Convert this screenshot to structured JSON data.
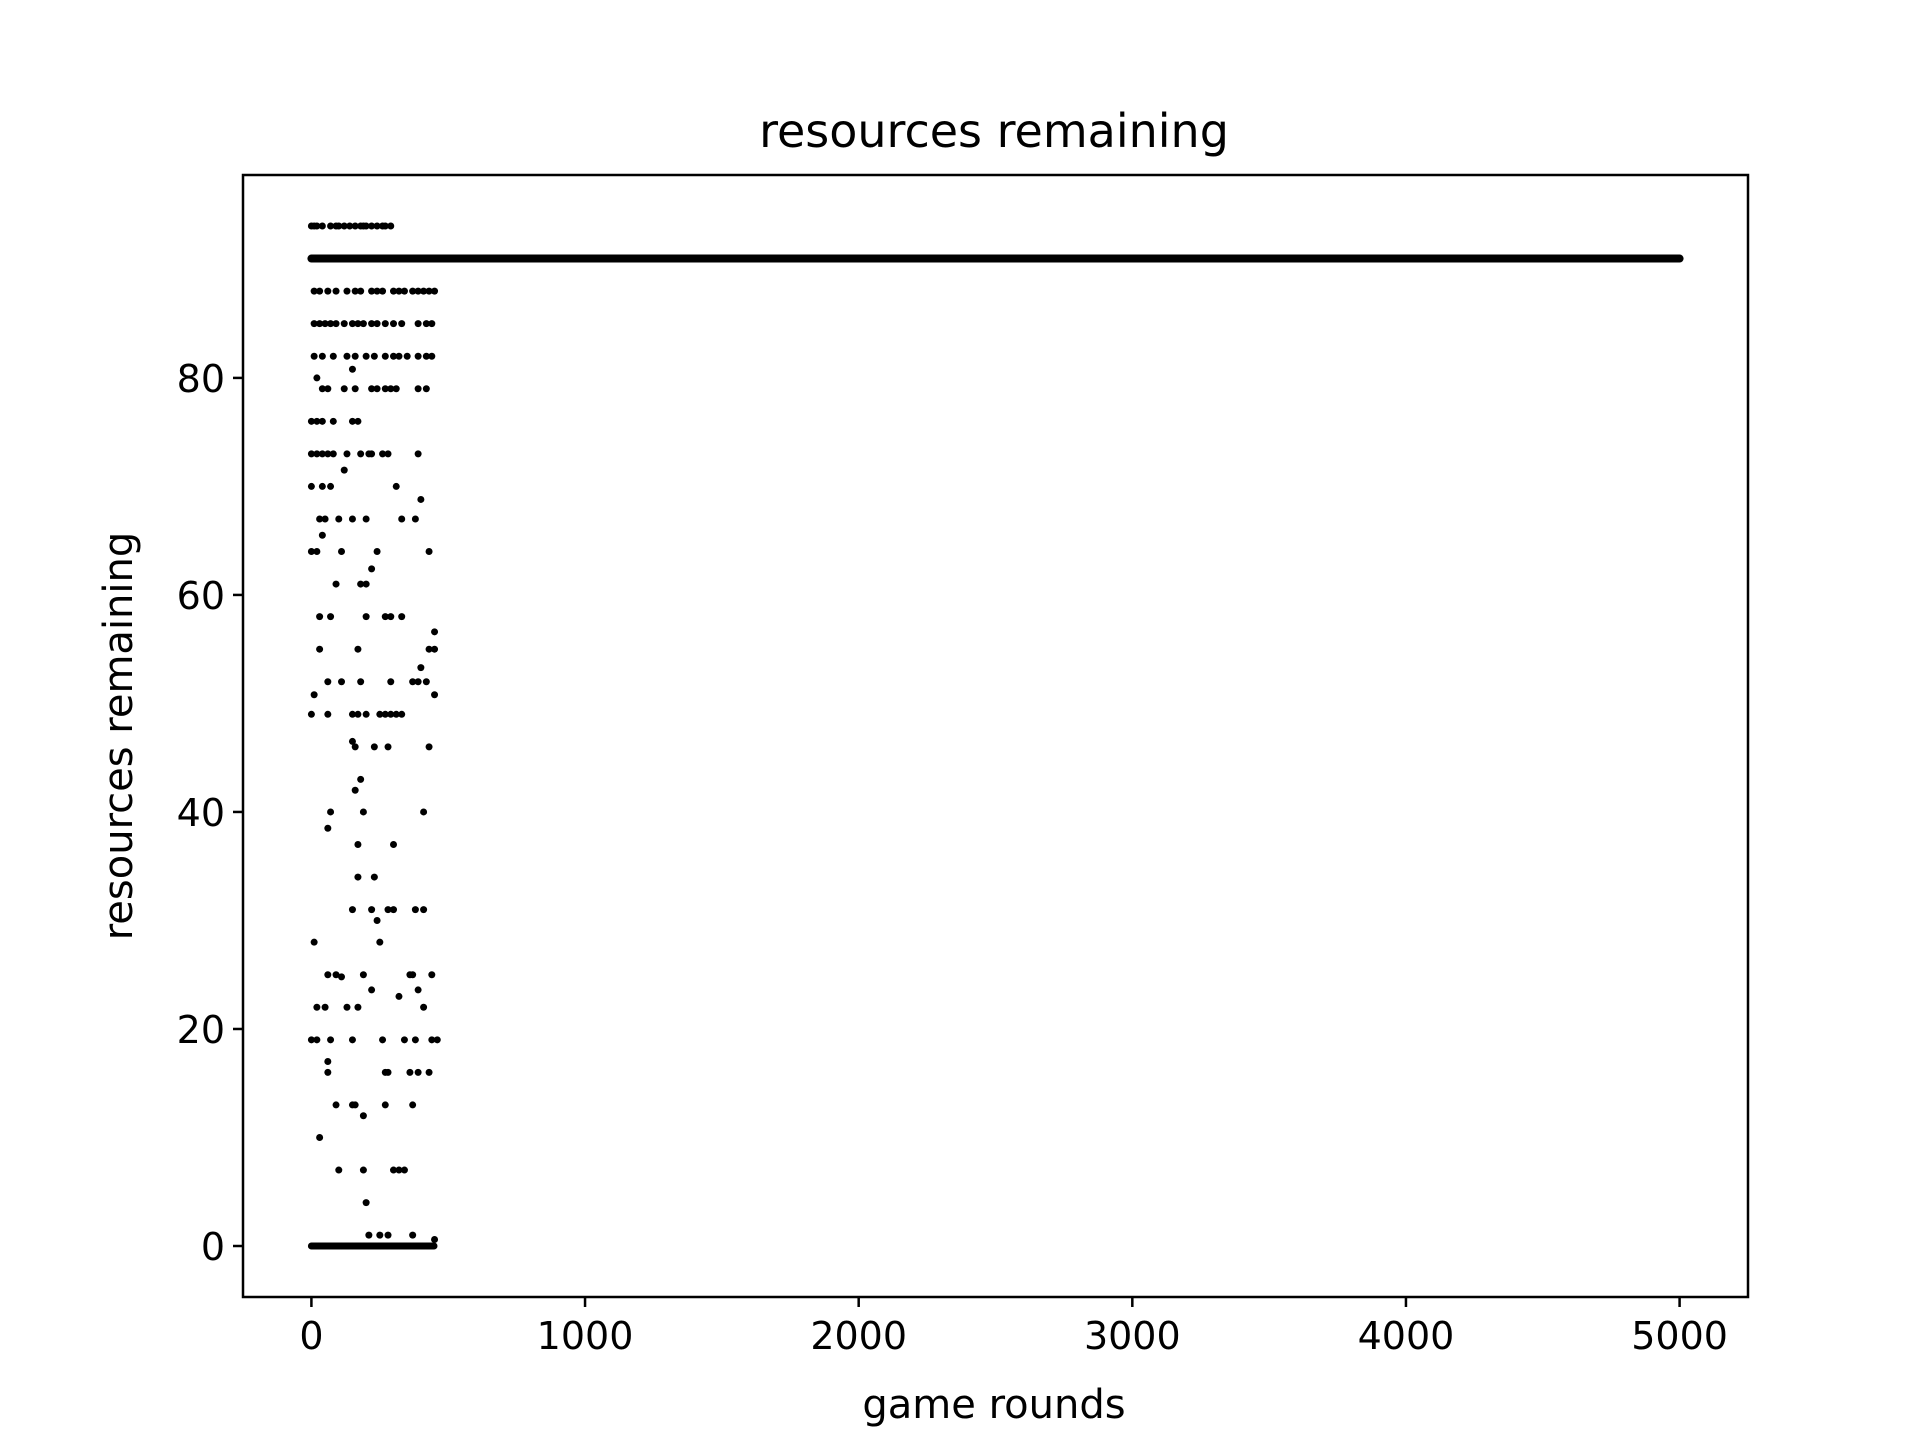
{
  "chart_data": {
    "type": "scatter",
    "title": "resources remaining",
    "xlabel": "game rounds",
    "ylabel": "resources remaining",
    "xlim": [
      -250,
      5250
    ],
    "ylim": [
      -4.7,
      98.7
    ],
    "xticks": [
      0,
      1000,
      2000,
      3000,
      4000,
      5000
    ],
    "yticks": [
      0,
      20,
      40,
      60,
      80
    ],
    "grid": false,
    "marker_color": "#000000",
    "plateau": {
      "y": 91,
      "x_from": 0,
      "x_to": 5000,
      "note": "dense points at every round"
    },
    "points": [
      [
        0,
        94
      ],
      [
        10,
        94
      ],
      [
        20,
        94
      ],
      [
        40,
        94
      ],
      [
        70,
        94
      ],
      [
        90,
        94
      ],
      [
        100,
        94
      ],
      [
        120,
        94
      ],
      [
        140,
        94
      ],
      [
        160,
        94
      ],
      [
        180,
        94
      ],
      [
        190,
        94
      ],
      [
        200,
        94
      ],
      [
        220,
        94
      ],
      [
        240,
        94
      ],
      [
        260,
        94
      ],
      [
        270,
        94
      ],
      [
        290,
        94
      ],
      [
        10,
        91
      ],
      [
        20,
        91
      ],
      [
        70,
        91
      ],
      [
        90,
        91
      ],
      [
        120,
        91
      ],
      [
        150,
        91
      ],
      [
        170,
        91
      ],
      [
        200,
        91
      ],
      [
        220,
        91
      ],
      [
        250,
        91
      ],
      [
        10,
        88
      ],
      [
        30,
        88
      ],
      [
        60,
        88
      ],
      [
        90,
        88
      ],
      [
        130,
        88
      ],
      [
        160,
        88
      ],
      [
        180,
        88
      ],
      [
        220,
        88
      ],
      [
        240,
        88
      ],
      [
        260,
        88
      ],
      [
        300,
        88
      ],
      [
        320,
        88
      ],
      [
        340,
        88
      ],
      [
        370,
        88
      ],
      [
        390,
        88
      ],
      [
        410,
        88
      ],
      [
        430,
        88
      ],
      [
        450,
        88
      ],
      [
        10,
        85
      ],
      [
        30,
        85
      ],
      [
        50,
        85
      ],
      [
        70,
        85
      ],
      [
        90,
        85
      ],
      [
        120,
        85
      ],
      [
        150,
        85
      ],
      [
        170,
        85
      ],
      [
        190,
        85
      ],
      [
        220,
        85
      ],
      [
        240,
        85
      ],
      [
        270,
        85
      ],
      [
        300,
        85
      ],
      [
        330,
        85
      ],
      [
        390,
        85
      ],
      [
        420,
        85
      ],
      [
        440,
        85
      ],
      [
        10,
        82
      ],
      [
        40,
        82
      ],
      [
        80,
        82
      ],
      [
        130,
        82
      ],
      [
        160,
        82
      ],
      [
        200,
        82
      ],
      [
        230,
        82
      ],
      [
        270,
        82
      ],
      [
        300,
        82
      ],
      [
        320,
        82
      ],
      [
        350,
        82
      ],
      [
        390,
        82
      ],
      [
        420,
        82
      ],
      [
        440,
        82
      ],
      [
        20,
        80
      ],
      [
        40,
        79
      ],
      [
        60,
        79
      ],
      [
        120,
        79
      ],
      [
        160,
        79
      ],
      [
        220,
        79
      ],
      [
        240,
        79
      ],
      [
        270,
        79
      ],
      [
        290,
        79
      ],
      [
        310,
        79
      ],
      [
        390,
        79
      ],
      [
        420,
        79
      ],
      [
        150,
        80.8
      ],
      [
        0,
        76
      ],
      [
        20,
        76
      ],
      [
        40,
        76
      ],
      [
        80,
        76
      ],
      [
        150,
        76
      ],
      [
        170,
        76
      ],
      [
        0,
        73
      ],
      [
        20,
        73
      ],
      [
        40,
        73
      ],
      [
        60,
        73
      ],
      [
        80,
        73
      ],
      [
        130,
        73
      ],
      [
        180,
        73
      ],
      [
        210,
        73
      ],
      [
        220,
        73
      ],
      [
        260,
        73
      ],
      [
        280,
        73
      ],
      [
        390,
        73
      ],
      [
        120,
        71.5
      ],
      [
        0,
        70
      ],
      [
        40,
        70
      ],
      [
        70,
        70
      ],
      [
        310,
        70
      ],
      [
        400,
        68.8
      ],
      [
        30,
        67
      ],
      [
        50,
        67
      ],
      [
        100,
        67
      ],
      [
        150,
        67
      ],
      [
        200,
        67
      ],
      [
        330,
        67
      ],
      [
        380,
        67
      ],
      [
        40,
        65.5
      ],
      [
        0,
        64
      ],
      [
        20,
        64
      ],
      [
        110,
        64
      ],
      [
        240,
        64
      ],
      [
        430,
        64
      ],
      [
        220,
        62.4
      ],
      [
        90,
        61
      ],
      [
        180,
        61
      ],
      [
        200,
        61
      ],
      [
        30,
        58
      ],
      [
        70,
        58
      ],
      [
        200,
        58
      ],
      [
        270,
        58
      ],
      [
        290,
        58
      ],
      [
        330,
        58
      ],
      [
        450,
        56.6
      ],
      [
        30,
        55
      ],
      [
        170,
        55
      ],
      [
        430,
        55
      ],
      [
        450,
        55
      ],
      [
        400,
        53.3
      ],
      [
        60,
        52
      ],
      [
        110,
        52
      ],
      [
        180,
        52
      ],
      [
        290,
        52
      ],
      [
        370,
        52
      ],
      [
        390,
        52
      ],
      [
        420,
        52
      ],
      [
        10,
        50.8
      ],
      [
        450,
        50.8
      ],
      [
        0,
        49
      ],
      [
        60,
        49
      ],
      [
        150,
        49
      ],
      [
        170,
        49
      ],
      [
        200,
        49
      ],
      [
        250,
        49
      ],
      [
        270,
        49
      ],
      [
        290,
        49
      ],
      [
        310,
        49
      ],
      [
        330,
        49
      ],
      [
        150,
        46.5
      ],
      [
        160,
        46
      ],
      [
        230,
        46
      ],
      [
        280,
        46
      ],
      [
        430,
        46
      ],
      [
        160,
        42
      ],
      [
        180,
        43
      ],
      [
        70,
        40
      ],
      [
        190,
        40
      ],
      [
        410,
        40
      ],
      [
        60,
        38.5
      ],
      [
        170,
        37
      ],
      [
        300,
        37
      ],
      [
        170,
        34
      ],
      [
        230,
        34
      ],
      [
        150,
        31
      ],
      [
        220,
        31
      ],
      [
        280,
        31
      ],
      [
        300,
        31
      ],
      [
        380,
        31
      ],
      [
        410,
        31
      ],
      [
        240,
        30
      ],
      [
        250,
        28
      ],
      [
        10,
        28
      ],
      [
        60,
        25
      ],
      [
        90,
        25
      ],
      [
        110,
        24.8
      ],
      [
        190,
        25
      ],
      [
        360,
        25
      ],
      [
        370,
        25
      ],
      [
        440,
        25
      ],
      [
        220,
        23.6
      ],
      [
        320,
        23
      ],
      [
        390,
        23.6
      ],
      [
        410,
        22
      ],
      [
        20,
        22
      ],
      [
        50,
        22
      ],
      [
        130,
        22
      ],
      [
        170,
        22
      ],
      [
        0,
        19
      ],
      [
        20,
        19
      ],
      [
        70,
        19
      ],
      [
        150,
        19
      ],
      [
        260,
        19
      ],
      [
        340,
        19
      ],
      [
        380,
        19
      ],
      [
        440,
        19
      ],
      [
        460,
        19
      ],
      [
        60,
        17
      ],
      [
        60,
        16
      ],
      [
        270,
        16
      ],
      [
        280,
        16
      ],
      [
        360,
        16
      ],
      [
        390,
        16
      ],
      [
        430,
        16
      ],
      [
        90,
        13
      ],
      [
        150,
        13
      ],
      [
        160,
        13
      ],
      [
        270,
        13
      ],
      [
        370,
        13
      ],
      [
        190,
        12
      ],
      [
        30,
        10
      ],
      [
        100,
        7
      ],
      [
        190,
        7
      ],
      [
        300,
        7
      ],
      [
        320,
        7
      ],
      [
        340,
        7
      ],
      [
        200,
        4
      ],
      [
        210,
        1
      ],
      [
        250,
        1
      ],
      [
        280,
        1
      ],
      [
        370,
        1
      ],
      [
        450,
        0.6
      ]
    ]
  }
}
